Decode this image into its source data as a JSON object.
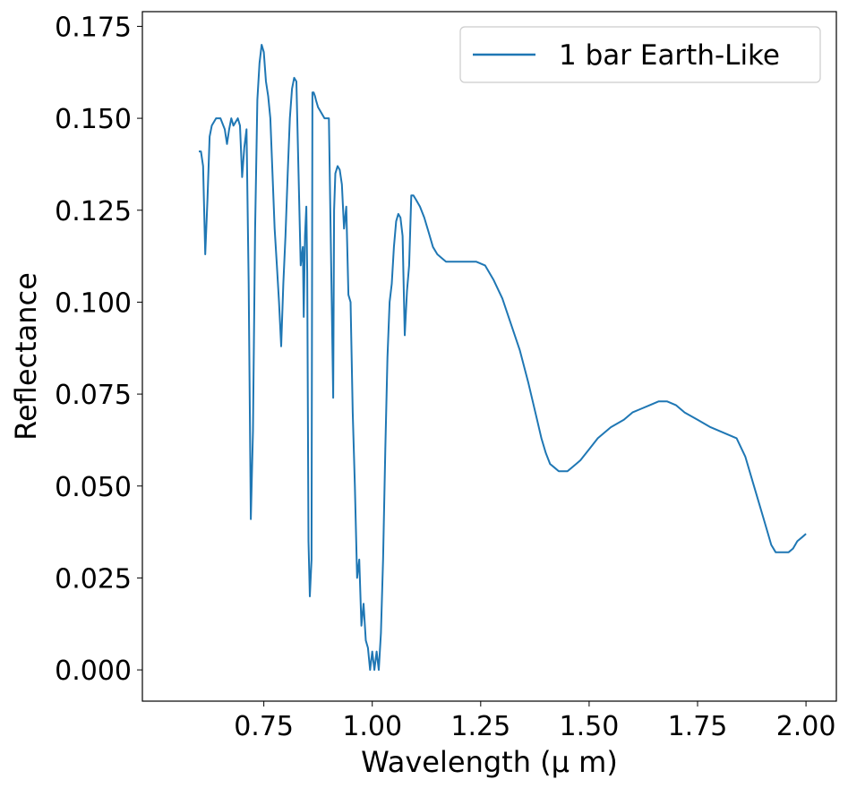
{
  "chart_data": {
    "type": "line",
    "xlabel": "Wavelength (μ m)",
    "ylabel": "Reflectance",
    "xlim": [
      0.47,
      2.07
    ],
    "ylim": [
      -0.0085,
      0.179
    ],
    "xticks": [
      0.75,
      1.0,
      1.25,
      1.5,
      1.75,
      2.0
    ],
    "xtick_labels": [
      "0.75",
      "1.00",
      "1.25",
      "1.50",
      "1.75",
      "2.00"
    ],
    "yticks": [
      0.0,
      0.025,
      0.05,
      0.075,
      0.1,
      0.125,
      0.15,
      0.175
    ],
    "ytick_labels": [
      "0.000",
      "0.025",
      "0.050",
      "0.075",
      "0.100",
      "0.125",
      "0.150",
      "0.175"
    ],
    "grid": false,
    "legend_position": "top-right",
    "series": [
      {
        "name": "1 bar Earth-Like",
        "color": "#1f77b4",
        "x": [
          0.6,
          0.605,
          0.61,
          0.615,
          0.62,
          0.625,
          0.63,
          0.64,
          0.65,
          0.66,
          0.665,
          0.67,
          0.675,
          0.68,
          0.69,
          0.695,
          0.7,
          0.705,
          0.71,
          0.715,
          0.72,
          0.725,
          0.73,
          0.735,
          0.74,
          0.745,
          0.75,
          0.755,
          0.76,
          0.765,
          0.77,
          0.775,
          0.78,
          0.785,
          0.79,
          0.795,
          0.8,
          0.805,
          0.81,
          0.815,
          0.82,
          0.825,
          0.83,
          0.835,
          0.84,
          0.842,
          0.845,
          0.848,
          0.85,
          0.853,
          0.856,
          0.86,
          0.862,
          0.865,
          0.868,
          0.87,
          0.875,
          0.88,
          0.89,
          0.9,
          0.91,
          0.912,
          0.915,
          0.92,
          0.925,
          0.93,
          0.935,
          0.94,
          0.945,
          0.95,
          0.955,
          0.96,
          0.965,
          0.97,
          0.975,
          0.98,
          0.985,
          0.99,
          0.995,
          1.0,
          1.005,
          1.01,
          1.015,
          1.02,
          1.025,
          1.03,
          1.035,
          1.04,
          1.045,
          1.05,
          1.055,
          1.06,
          1.065,
          1.07,
          1.075,
          1.08,
          1.085,
          1.09,
          1.095,
          1.1,
          1.11,
          1.12,
          1.13,
          1.14,
          1.15,
          1.16,
          1.17,
          1.18,
          1.2,
          1.22,
          1.24,
          1.26,
          1.28,
          1.3,
          1.32,
          1.34,
          1.36,
          1.38,
          1.39,
          1.4,
          1.41,
          1.42,
          1.43,
          1.44,
          1.45,
          1.46,
          1.47,
          1.48,
          1.5,
          1.52,
          1.55,
          1.58,
          1.6,
          1.62,
          1.64,
          1.66,
          1.68,
          1.7,
          1.72,
          1.75,
          1.78,
          1.8,
          1.82,
          1.84,
          1.86,
          1.88,
          1.9,
          1.91,
          1.92,
          1.93,
          1.94,
          1.95,
          1.96,
          1.97,
          1.98,
          1.99,
          2.0
        ],
        "y": [
          0.141,
          0.141,
          0.137,
          0.113,
          0.128,
          0.145,
          0.148,
          0.15,
          0.15,
          0.147,
          0.143,
          0.147,
          0.15,
          0.148,
          0.15,
          0.148,
          0.134,
          0.142,
          0.147,
          0.105,
          0.041,
          0.065,
          0.12,
          0.155,
          0.165,
          0.17,
          0.168,
          0.16,
          0.156,
          0.15,
          0.135,
          0.12,
          0.11,
          0.1,
          0.088,
          0.105,
          0.118,
          0.135,
          0.15,
          0.158,
          0.161,
          0.16,
          0.135,
          0.11,
          0.115,
          0.096,
          0.118,
          0.126,
          0.108,
          0.035,
          0.02,
          0.03,
          0.157,
          0.157,
          0.156,
          0.155,
          0.153,
          0.152,
          0.15,
          0.15,
          0.074,
          0.125,
          0.135,
          0.137,
          0.136,
          0.132,
          0.12,
          0.126,
          0.102,
          0.1,
          0.07,
          0.05,
          0.025,
          0.03,
          0.012,
          0.018,
          0.008,
          0.006,
          0.0,
          0.005,
          0.0,
          0.005,
          0.0,
          0.01,
          0.03,
          0.06,
          0.085,
          0.1,
          0.105,
          0.115,
          0.122,
          0.124,
          0.123,
          0.118,
          0.091,
          0.103,
          0.11,
          0.129,
          0.129,
          0.128,
          0.126,
          0.123,
          0.119,
          0.115,
          0.113,
          0.112,
          0.111,
          0.111,
          0.111,
          0.111,
          0.111,
          0.11,
          0.106,
          0.101,
          0.094,
          0.087,
          0.078,
          0.068,
          0.063,
          0.059,
          0.056,
          0.055,
          0.054,
          0.054,
          0.054,
          0.055,
          0.056,
          0.057,
          0.06,
          0.063,
          0.066,
          0.068,
          0.07,
          0.071,
          0.072,
          0.073,
          0.073,
          0.072,
          0.07,
          0.068,
          0.066,
          0.065,
          0.064,
          0.063,
          0.058,
          0.05,
          0.042,
          0.038,
          0.034,
          0.032,
          0.032,
          0.032,
          0.032,
          0.033,
          0.035,
          0.036,
          0.037
        ]
      }
    ]
  }
}
